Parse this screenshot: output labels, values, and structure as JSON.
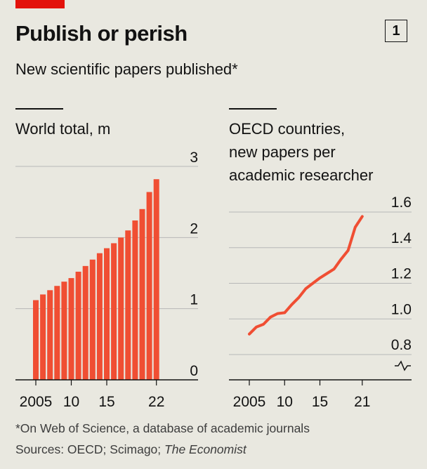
{
  "header": {
    "accent_color": "#e3120b",
    "title": "Publish or perish",
    "chart_number": "1",
    "subtitle": "New scientific papers published*"
  },
  "chart_data": [
    {
      "type": "bar",
      "title": "World total, m",
      "categories": [
        "2005",
        "2006",
        "2007",
        "2008",
        "2009",
        "2010",
        "2011",
        "2012",
        "2013",
        "2014",
        "2015",
        "2016",
        "2017",
        "2018",
        "2019",
        "2020",
        "2021",
        "2022"
      ],
      "values": [
        1.12,
        1.2,
        1.26,
        1.32,
        1.38,
        1.43,
        1.52,
        1.6,
        1.69,
        1.78,
        1.85,
        1.92,
        2.0,
        2.1,
        2.24,
        2.4,
        2.64,
        2.82
      ],
      "ylim": [
        0,
        3
      ],
      "yticks": [
        0,
        1,
        2,
        3
      ],
      "ytick_labels": [
        "0",
        "1",
        "2",
        "3"
      ],
      "xticks": [
        "2005",
        "10",
        "15",
        "22"
      ],
      "color": "#f04e33"
    },
    {
      "type": "line",
      "title": "OECD countries, new papers per academic researcher",
      "title_lines": [
        "OECD countries,",
        "new papers per",
        "academic researcher"
      ],
      "x": [
        2005,
        2006,
        2007,
        2008,
        2009,
        2010,
        2011,
        2012,
        2013,
        2014,
        2015,
        2016,
        2017,
        2018,
        2019,
        2020,
        2021
      ],
      "values": [
        0.915,
        0.955,
        0.97,
        1.01,
        1.03,
        1.035,
        1.08,
        1.12,
        1.17,
        1.2,
        1.23,
        1.255,
        1.28,
        1.335,
        1.385,
        1.515,
        1.575
      ],
      "ylim": [
        0.8,
        1.6
      ],
      "yticks": [
        0.8,
        1.0,
        1.2,
        1.4,
        1.6
      ],
      "ytick_labels": [
        "0.8",
        "1.0",
        "1.2",
        "1.4",
        "1.6"
      ],
      "xticks": [
        "2005",
        "10",
        "15",
        "21"
      ],
      "axis_break": true,
      "color": "#f04e33"
    }
  ],
  "footnotes": {
    "note": "*On Web of Science, a database of academic journals",
    "sources_prefix": "Sources: OECD; Scimago; ",
    "sources_italic": "The Economist"
  }
}
